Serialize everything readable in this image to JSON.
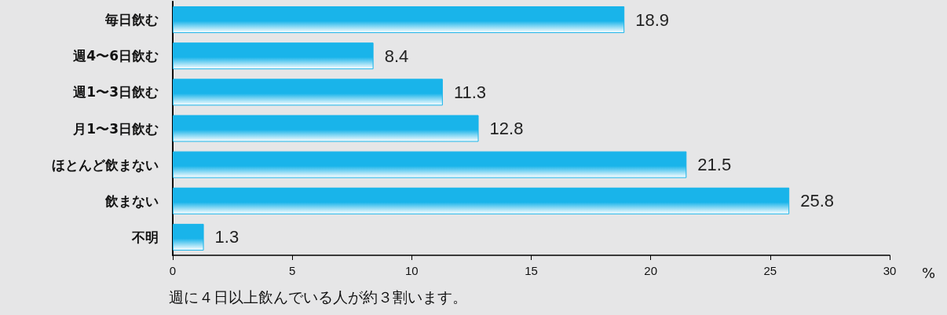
{
  "chart_data": {
    "type": "bar",
    "orientation": "horizontal",
    "categories": [
      "毎日飲む",
      "週4〜6日飲む",
      "週1〜3日飲む",
      "月1〜3日飲む",
      "ほとんど飲まない",
      "飲まない",
      "不明"
    ],
    "values": [
      18.9,
      8.4,
      11.3,
      12.8,
      21.5,
      25.8,
      1.3
    ],
    "color": "#19b4ea",
    "xlim": [
      0,
      30
    ],
    "xticks": [
      0,
      5,
      10,
      15,
      20,
      25,
      30
    ],
    "xlabel": "%",
    "data_labels": true,
    "grid": false,
    "annotations": [
      "週に４日以上飲んでいる人が約３割います。"
    ]
  }
}
